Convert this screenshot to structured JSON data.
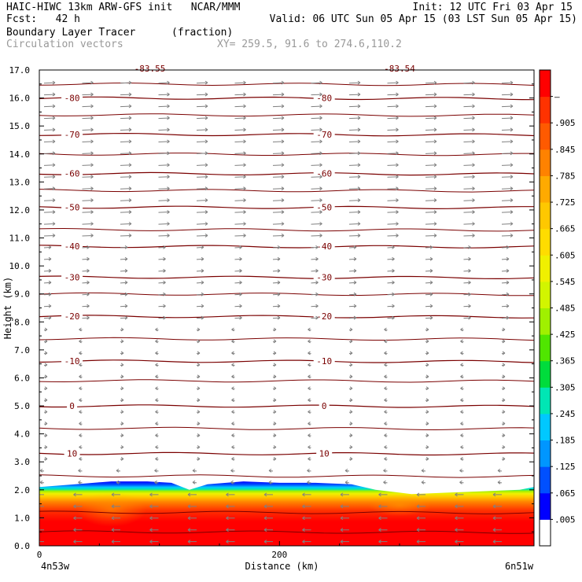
{
  "header": {
    "model_line": "HAIC-HIWC 13km ARW-GFS init   NCAR/MMM",
    "init_line": "Init: 12 UTC Fri 03 Apr 15",
    "fcst_line": "Fcst:   42 h",
    "valid_line": "Valid: 06 UTC Sun 05 Apr 15 (03 LST Sun 05 Apr 15)",
    "field_name": "Boundary Layer Tracer",
    "field_units": "(fraction)",
    "overlay_name": "Circulation vectors",
    "xy_line": "XY= 259.5, 91.6 to 274.6,110.2"
  },
  "chart_data": {
    "type": "heatmap",
    "xlabel": "Distance (km)",
    "ylabel": "Height (km)",
    "xlim": [
      0,
      412
    ],
    "ylim": [
      0,
      17
    ],
    "x_ticks": [
      {
        "v": 0,
        "label": "0"
      },
      {
        "v": 200,
        "label": "200"
      }
    ],
    "x_end_labels": [
      "4n53w",
      "6n51w"
    ],
    "y_ticks": [
      "0.0",
      "1.0",
      "2.0",
      "3.0",
      "4.0",
      "5.0",
      "6.0",
      "7.0",
      "8.0",
      "9.0",
      "10.0",
      "11.0",
      "12.0",
      "13.0",
      "14.0",
      "15.0",
      "16.0",
      "17.0"
    ],
    "colorbar": {
      "labels": [
        ".005",
        ".065",
        ".125",
        ".185",
        ".245",
        ".305",
        ".365",
        ".425",
        ".485",
        ".545",
        ".605",
        ".665",
        ".725",
        ".785",
        ".845",
        ".905",
        "–"
      ],
      "colors": [
        "#ffffff",
        "#0000ff",
        "#0050ff",
        "#0096ff",
        "#00c8ff",
        "#00e6b4",
        "#00dc3c",
        "#50e600",
        "#a0f000",
        "#d2f500",
        "#f0f000",
        "#ffdc00",
        "#ffc800",
        "#ffaa00",
        "#ff8200",
        "#ff5a00",
        "#ff3200",
        "#ff0000"
      ]
    },
    "tracer_top_km": [
      [
        0,
        2.1
      ],
      [
        30,
        2.2
      ],
      [
        60,
        2.3
      ],
      [
        90,
        2.3
      ],
      [
        110,
        2.25
      ],
      [
        125,
        2.0
      ],
      [
        140,
        2.2
      ],
      [
        170,
        2.3
      ],
      [
        200,
        2.25
      ],
      [
        230,
        2.25
      ],
      [
        260,
        2.2
      ],
      [
        280,
        2.0
      ],
      [
        310,
        1.85
      ],
      [
        340,
        1.9
      ],
      [
        370,
        1.95
      ],
      [
        400,
        2.0
      ],
      [
        412,
        2.1
      ]
    ],
    "isotherms": [
      {
        "label": "10",
        "height_km": 3.3
      },
      {
        "label": "0",
        "height_km": 5.0
      },
      {
        "label": "-10",
        "height_km": 6.6
      },
      {
        "label": "-20",
        "height_km": 8.2
      },
      {
        "label": "-30",
        "height_km": 9.6
      },
      {
        "label": "-40",
        "height_km": 10.7
      },
      {
        "label": "-50",
        "height_km": 12.1
      },
      {
        "label": "-60",
        "height_km": 13.3
      },
      {
        "label": "-70",
        "height_km": 14.7
      },
      {
        "label": "-80",
        "height_km": 16.0
      }
    ],
    "top_labels": [
      "-83.55",
      "-83.54"
    ],
    "unlabeled_contours_km": [
      0.5,
      1.2,
      2.5,
      4.2,
      5.9,
      7.4,
      9.0,
      11.3,
      12.7,
      14.0,
      15.4,
      16.5
    ]
  }
}
